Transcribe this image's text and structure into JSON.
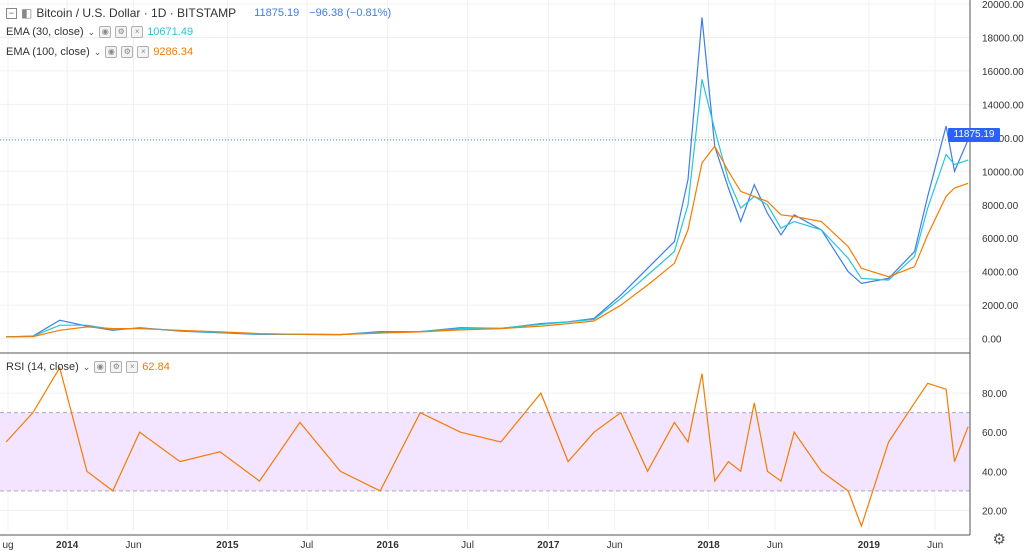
{
  "header": {
    "symbol": "Bitcoin / U.S. Dollar · 1D · BITSTAMP",
    "last": "11875.19",
    "change": "−96.38 (−0.81%)"
  },
  "indicators": {
    "ema30": {
      "label": "EMA (30, close)",
      "value": "10671.49",
      "color": "#26c6da"
    },
    "ema100": {
      "label": "EMA (100, close)",
      "value": "9286.34",
      "color": "#f57c00"
    },
    "rsi": {
      "label": "RSI (14, close)",
      "value": "62.84",
      "color": "#f57c00"
    }
  },
  "price_tag": "11875.19",
  "colors": {
    "price": "#3d7de6",
    "ema30": "#26c6da",
    "ema100": "#f57c00",
    "rsi": "#f57c00",
    "rsi_band": "#f3e5ff",
    "accent": "#2962ff"
  },
  "icons": [
    "collapse-icon",
    "eye-icon",
    "settings-icon",
    "close-icon",
    "gear-icon"
  ],
  "chart_data": [
    {
      "type": "line",
      "title": "Bitcoin / U.S. Dollar · 1D · BITSTAMP",
      "ylim": [
        -800,
        20000
      ],
      "y_ticks": [
        "0.00",
        "2000.00",
        "4000.00",
        "6000.00",
        "8000.00",
        "10000.00",
        "12000.00",
        "14000.00",
        "16000.00",
        "18000.00",
        "20000.00"
      ],
      "x_ticks": [
        "ug",
        "2014",
        "Jun",
        "2015",
        "Jul",
        "2016",
        "Jul",
        "2017",
        "Jun",
        "2018",
        "Jun",
        "2019",
        "Jun"
      ],
      "x": [
        "2013-08",
        "2013-10",
        "2013-12",
        "2014-02",
        "2014-04",
        "2014-06",
        "2014-09",
        "2014-12",
        "2015-03",
        "2015-06",
        "2015-09",
        "2015-12",
        "2016-03",
        "2016-06",
        "2016-09",
        "2016-12",
        "2017-02",
        "2017-04",
        "2017-06",
        "2017-08",
        "2017-10",
        "2017-11",
        "2017-12-17",
        "2018-01",
        "2018-02",
        "2018-03",
        "2018-04",
        "2018-05",
        "2018-06",
        "2018-07",
        "2018-09",
        "2018-11",
        "2018-12",
        "2019-02",
        "2019-04",
        "2019-05",
        "2019-06-26",
        "2019-07",
        "2019-08"
      ],
      "series": [
        {
          "name": "",
          "values": [
            100,
            150,
            1100,
            750,
            500,
            650,
            450,
            350,
            250,
            250,
            240,
            420,
            420,
            650,
            610,
            900,
            1000,
            1200,
            2600,
            4200,
            5800,
            9500,
            19200,
            11500,
            9000,
            7000,
            9200,
            7500,
            6200,
            7400,
            6500,
            4000,
            3300,
            3600,
            5200,
            8500,
            12700,
            10000,
            11875
          ]
        },
        {
          "name": "EMA (30, close)",
          "values": [
            100,
            140,
            800,
            800,
            550,
            620,
            470,
            370,
            270,
            250,
            240,
            380,
            420,
            600,
            620,
            850,
            1000,
            1150,
            2400,
            3800,
            5200,
            8000,
            15500,
            12500,
            9500,
            7800,
            8500,
            8000,
            6600,
            7000,
            6500,
            4800,
            3600,
            3500,
            4900,
            7800,
            11000,
            10400,
            10671
          ]
        },
        {
          "name": "EMA (100, close)",
          "values": [
            100,
            120,
            500,
            700,
            600,
            600,
            500,
            400,
            300,
            260,
            245,
            330,
            400,
            520,
            600,
            750,
            900,
            1050,
            2000,
            3200,
            4500,
            6500,
            10500,
            11500,
            10000,
            8800,
            8500,
            8200,
            7400,
            7300,
            7000,
            5500,
            4200,
            3700,
            4300,
            6200,
            8500,
            9000,
            9286
          ]
        }
      ]
    },
    {
      "type": "line",
      "title": "RSI (14, close)",
      "ylim": [
        10,
        100
      ],
      "y_ticks": [
        "20.00",
        "40.00",
        "60.00",
        "80.00"
      ],
      "bands": [
        30,
        70
      ],
      "series": [
        {
          "name": "RSI (14, close)",
          "values": [
            55,
            70,
            93,
            40,
            30,
            60,
            45,
            50,
            35,
            65,
            40,
            30,
            70,
            60,
            55,
            80,
            45,
            60,
            70,
            40,
            65,
            55,
            90,
            35,
            45,
            40,
            75,
            40,
            35,
            60,
            40,
            30,
            12,
            55,
            75,
            85,
            82,
            45,
            62.84
          ]
        }
      ]
    }
  ]
}
